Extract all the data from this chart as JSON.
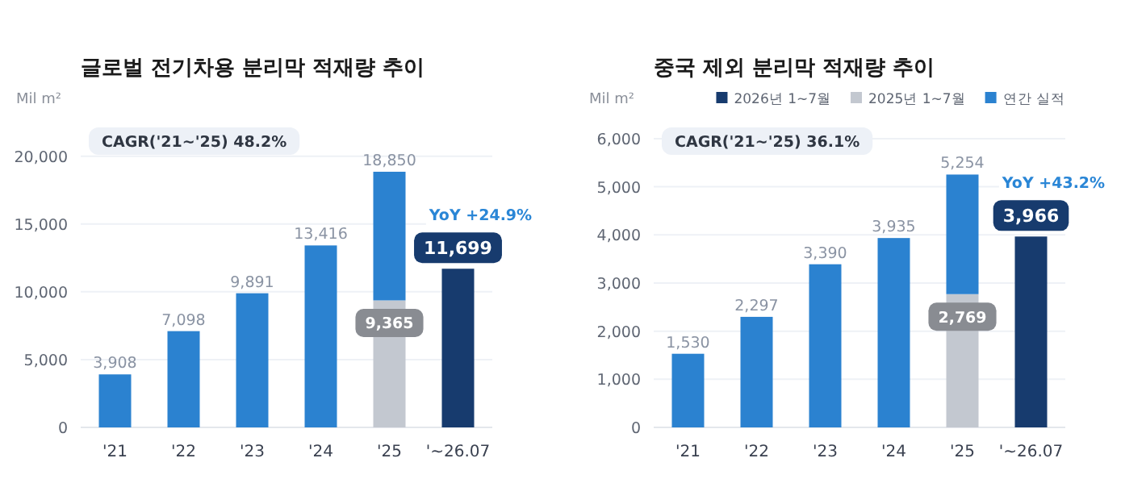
{
  "chart_data": [
    {
      "type": "bar",
      "title": "글로벌 전기차용 분리막 적재량 추이",
      "ylabel": "Mil m²",
      "categories": [
        "'21",
        "'22",
        "'23",
        "'24",
        "'25",
        "'~26.07"
      ],
      "stacked": true,
      "ylim": [
        0,
        22000
      ],
      "yticks": [
        0,
        {
          "value": 5000,
          "label": "5,000"
        },
        {
          "value": 10000,
          "label": "10,000"
        },
        {
          "value": 15000,
          "label": "15,000"
        },
        {
          "value": 20000,
          "label": "20,000"
        }
      ],
      "grid": "y",
      "legend": false,
      "series": [
        {
          "color": "#173b6e",
          "values": [
            null,
            null,
            null,
            null,
            null,
            11699
          ],
          "value_labels": [
            null,
            null,
            null,
            null,
            null,
            "11,699"
          ]
        },
        {
          "color": "#c3c8d0",
          "values": [
            null,
            null,
            null,
            null,
            9365,
            null
          ],
          "value_labels": [
            null,
            null,
            null,
            null,
            "9,365",
            null
          ]
        },
        {
          "color": "#2b82d0",
          "values": [
            3908,
            7098,
            9891,
            13416,
            9485,
            null
          ]
        }
      ],
      "totals": [
        "3,908",
        "7,098",
        "9,891",
        "13,416",
        "18,850",
        null
      ],
      "annotations": [
        "CAGR('21~'25)  48.2%",
        {
          "text": "YoY  +24.9%",
          "x": "'~26.07",
          "y": 11699
        }
      ]
    },
    {
      "type": "bar",
      "title": "중국 제외 분리막 적재량 추이",
      "ylabel": "Mil m²",
      "categories": [
        "'21",
        "'22",
        "'23",
        "'24",
        "'25",
        "'~26.07"
      ],
      "stacked": true,
      "ylim": [
        0,
        6200
      ],
      "yticks": [
        0,
        {
          "value": 1000,
          "label": "1,000"
        },
        {
          "value": 2000,
          "label": "2,000"
        },
        {
          "value": 3000,
          "label": "3,000"
        },
        {
          "value": 4000,
          "label": "4,000"
        },
        {
          "value": 5000,
          "label": "5,000"
        },
        {
          "value": 6000,
          "label": "6,000"
        }
      ],
      "grid": "y",
      "legend": "top right",
      "series": [
        {
          "name": "2026년 1~7월",
          "color": "#173b6e",
          "values": [
            null,
            null,
            null,
            null,
            null,
            3966
          ],
          "value_labels": [
            null,
            null,
            null,
            null,
            null,
            "3,966"
          ]
        },
        {
          "name": "2025년 1~7월",
          "color": "#c3c8d0",
          "values": [
            null,
            null,
            null,
            null,
            2769,
            null
          ],
          "value_labels": [
            null,
            null,
            null,
            null,
            "2,769",
            null
          ]
        },
        {
          "name": "연간 실적",
          "color": "#2b82d0",
          "values": [
            1530,
            2297,
            3390,
            3935,
            2485,
            null
          ]
        }
      ],
      "totals": [
        "1,530",
        "2,297",
        "3,390",
        "3,935",
        "5,254",
        null
      ],
      "annotations": [
        "CAGR('21~'25)  36.1%",
        {
          "text": "YoY  +43.2%",
          "x": "'~26.07",
          "y": 3966
        }
      ]
    }
  ]
}
